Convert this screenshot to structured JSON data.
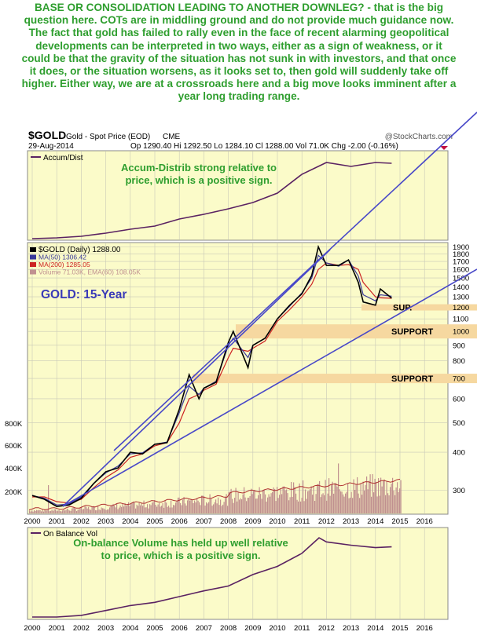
{
  "commentary": "BASE OR CONSOLIDATION LEADING TO ANOTHER DOWNLEG? - that is the big question here. COTs are in middling ground and do not provide much guidance now. The fact that gold has failed to rally even in the face of recent alarming geopolitical developments can be interpreted in two ways, either as a sign of weakness, or it could be that the gravity of the situation has not sunk in with investors, and that once it does, or the situation worsens, as it looks set to, then gold will suddenly take off higher. Either way, we are at a crossroads here and a big move looks imminent after a year long trading range.",
  "header": {
    "symbol": "$GOLD",
    "name": "Gold - Spot Price (EOD)",
    "exchange": "CME",
    "watermark": "@StockCharts.com",
    "date": "29-Aug-2014",
    "quote": "Op 1290.40  Hi 1292.50  Lo 1284.10  Cl 1288.00  Vol 71.0K  Chg -2.00 (-0.16%)"
  },
  "colors": {
    "panel_bg": "#fbfbc9",
    "grid": "#c9c9b8",
    "price": "#000000",
    "ma50": "#3a3a9a",
    "ma200": "#cc2222",
    "trendline": "#4848c8",
    "volume": "#c09090",
    "indicator": "#5a2262",
    "annotation_green": "#2e9e2e",
    "annotation_blue": "#3a3ab8",
    "support_band": "#f6d8a0"
  },
  "chart_data": [
    {
      "type": "line",
      "title": "Accum/Dist",
      "annotation": "Accum-Distrib strong relative to price, which is a positive sign.",
      "x": [
        2000,
        2001,
        2002,
        2003,
        2004,
        2005,
        2006,
        2007,
        2008,
        2009,
        2010,
        2011,
        2012,
        2013,
        2014,
        2014.66
      ],
      "values": [
        0.0,
        0.01,
        0.03,
        0.07,
        0.12,
        0.16,
        0.25,
        0.31,
        0.38,
        0.46,
        0.58,
        0.82,
        0.97,
        0.92,
        0.97,
        0.96
      ],
      "value_scale": "normalized (no axis printed)"
    },
    {
      "type": "line",
      "title": "$GOLD (Daily) 1288.00",
      "label": "GOLD: 15-Year",
      "legend": [
        {
          "name": "$GOLD (Daily) 1288.00",
          "color": "#000000"
        },
        {
          "name": "MA(50) 1306.42",
          "color": "#3a3a9a"
        },
        {
          "name": "MA(200) 1285.05",
          "color": "#cc2222"
        },
        {
          "name": "Volume 71.03K, EMA(60) 108.05K",
          "color": "#c09090"
        }
      ],
      "x": [
        2000,
        2000.5,
        2001,
        2001.5,
        2002,
        2002.5,
        2003,
        2003.5,
        2004,
        2004.5,
        2005,
        2005.5,
        2006,
        2006.4,
        2006.8,
        2007,
        2007.5,
        2008,
        2008.2,
        2008.8,
        2009,
        2009.5,
        2010,
        2010.5,
        2011,
        2011.4,
        2011.67,
        2012,
        2012.5,
        2012.9,
        2013.3,
        2013.5,
        2014,
        2014.2,
        2014.66
      ],
      "series": [
        {
          "name": "$GOLD (Daily)",
          "values": [
            288,
            280,
            265,
            268,
            282,
            315,
            345,
            355,
            400,
            395,
            425,
            430,
            555,
            720,
            600,
            650,
            680,
            920,
            1000,
            760,
            900,
            950,
            1100,
            1220,
            1330,
            1530,
            1900,
            1650,
            1650,
            1720,
            1450,
            1250,
            1220,
            1380,
            1288
          ]
        },
        {
          "name": "MA(50)",
          "values": [
            288,
            282,
            268,
            270,
            285,
            315,
            342,
            360,
            395,
            398,
            425,
            432,
            540,
            660,
            620,
            650,
            685,
            900,
            950,
            820,
            900,
            950,
            1100,
            1210,
            1340,
            1500,
            1780,
            1680,
            1640,
            1720,
            1520,
            1320,
            1260,
            1320,
            1306
          ]
        },
        {
          "name": "MA(200)",
          "values": [
            285,
            285,
            275,
            272,
            280,
            305,
            330,
            350,
            385,
            395,
            420,
            430,
            500,
            600,
            620,
            640,
            670,
            820,
            880,
            860,
            880,
            930,
            1080,
            1180,
            1300,
            1430,
            1600,
            1680,
            1650,
            1660,
            1600,
            1450,
            1300,
            1290,
            1285
          ]
        }
      ],
      "y_axis_ticks": [
        300,
        400,
        500,
        600,
        700,
        800,
        900,
        1000,
        1100,
        1200,
        1300,
        1400,
        1500,
        1600,
        1700,
        1800,
        1900
      ],
      "y_scale": "log",
      "volume_axis_ticks": [
        "200K",
        "400K",
        "600K",
        "800K"
      ],
      "support_levels": [
        {
          "label": "SUP.",
          "value": 1200
        },
        {
          "label": "SUPPORT",
          "value": 1000
        },
        {
          "label": "SUPPORT",
          "value": 700
        }
      ],
      "trendlines": [
        "upper channel line from 2003 low area",
        "lower channel line from 2001 low",
        "upper parallel from 2001 low through 2014"
      ],
      "x_axis_ticks": [
        "2000",
        "2001",
        "2002",
        "2003",
        "2004",
        "2005",
        "2006",
        "2007",
        "2008",
        "2009",
        "2010",
        "2011",
        "2012",
        "2013",
        "2014",
        "2015",
        "2016"
      ]
    },
    {
      "type": "line",
      "title": "On Balance Vol",
      "annotation": "On-balance Volume has held up well relative to price, which is a positive sign.",
      "x": [
        2000,
        2001,
        2002,
        2003,
        2004,
        2005,
        2006,
        2007,
        2008,
        2009,
        2010,
        2011,
        2011.7,
        2012,
        2013,
        2014,
        2014.66
      ],
      "values": [
        0.0,
        0.0,
        0.02,
        0.08,
        0.14,
        0.18,
        0.25,
        0.32,
        0.38,
        0.52,
        0.62,
        0.78,
        0.97,
        0.92,
        0.88,
        0.85,
        0.86
      ],
      "value_scale": "normalized (no axis printed)",
      "x_axis_ticks": [
        "2000",
        "2001",
        "2002",
        "2003",
        "2004",
        "2005",
        "2006",
        "2007",
        "2008",
        "2009",
        "2010",
        "2011",
        "2012",
        "2013",
        "2014",
        "2015",
        "2016"
      ]
    }
  ]
}
